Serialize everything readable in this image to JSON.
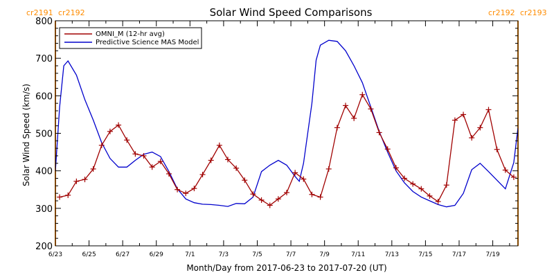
{
  "colors": {
    "omni": "#a00000",
    "mas": "#0000cc",
    "carrington": "#ff8c00",
    "axis": "#000000"
  },
  "carrington_labels": {
    "left": [
      "cr2191",
      "cr2192"
    ],
    "right": [
      "cr2192",
      "cr2193"
    ]
  },
  "chart_data": {
    "type": "line",
    "title": "Solar Wind Speed Comparisons",
    "xlabel": "Month/Day from 2017-06-23 to 2017-07-20 (UT)",
    "ylabel": "Solar Wind Speed (km/s)",
    "ylim": [
      200,
      800
    ],
    "xlim": [
      "2017-06-23 00:00",
      "2017-07-20 12:00"
    ],
    "x_ticks": [
      "6/23",
      "6/25",
      "6/27",
      "6/29",
      "7/1",
      "7/3",
      "7/5",
      "7/7",
      "7/9",
      "7/11",
      "7/13",
      "7/15",
      "7/17",
      "7/19"
    ],
    "y_ticks": [
      "200",
      "300",
      "400",
      "500",
      "600",
      "700",
      "800"
    ],
    "legend_position": "top-left",
    "carrington_boundaries": [
      "2017-06-23 00:00",
      "2017-07-20 12:00"
    ],
    "series": [
      {
        "name": "OMNI_M (12-hr avg)",
        "style": "line-with-plus-markers",
        "points": [
          [
            "2017-06-23 06:00",
            330
          ],
          [
            "2017-06-23 18:00",
            335
          ],
          [
            "2017-06-24 06:00",
            372
          ],
          [
            "2017-06-24 18:00",
            377
          ],
          [
            "2017-06-25 06:00",
            405
          ],
          [
            "2017-06-25 18:00",
            468
          ],
          [
            "2017-06-26 06:00",
            505
          ],
          [
            "2017-06-26 18:00",
            522
          ],
          [
            "2017-06-27 06:00",
            482
          ],
          [
            "2017-06-27 18:00",
            445
          ],
          [
            "2017-06-28 06:00",
            440
          ],
          [
            "2017-06-28 18:00",
            410
          ],
          [
            "2017-06-29 06:00",
            425
          ],
          [
            "2017-06-29 18:00",
            392
          ],
          [
            "2017-06-30 06:00",
            350
          ],
          [
            "2017-06-30 18:00",
            340
          ],
          [
            "2017-07-01 06:00",
            353
          ],
          [
            "2017-07-01 18:00",
            390
          ],
          [
            "2017-07-02 06:00",
            428
          ],
          [
            "2017-07-02 18:00",
            468
          ],
          [
            "2017-07-03 06:00",
            430
          ],
          [
            "2017-07-03 18:00",
            407
          ],
          [
            "2017-07-04 06:00",
            375
          ],
          [
            "2017-07-04 18:00",
            338
          ],
          [
            "2017-07-05 06:00",
            322
          ],
          [
            "2017-07-05 18:00",
            308
          ],
          [
            "2017-07-06 06:00",
            325
          ],
          [
            "2017-07-06 18:00",
            342
          ],
          [
            "2017-07-07 06:00",
            395
          ],
          [
            "2017-07-07 18:00",
            378
          ],
          [
            "2017-07-08 06:00",
            337
          ],
          [
            "2017-07-08 18:00",
            330
          ],
          [
            "2017-07-09 06:00",
            405
          ],
          [
            "2017-07-09 18:00",
            515
          ],
          [
            "2017-07-10 06:00",
            574
          ],
          [
            "2017-07-10 18:00",
            540
          ],
          [
            "2017-07-11 06:00",
            603
          ],
          [
            "2017-07-11 18:00",
            565
          ],
          [
            "2017-07-12 06:00",
            502
          ],
          [
            "2017-07-12 18:00",
            458
          ],
          [
            "2017-07-13 06:00",
            408
          ],
          [
            "2017-07-13 18:00",
            380
          ],
          [
            "2017-07-14 06:00",
            365
          ],
          [
            "2017-07-14 18:00",
            352
          ],
          [
            "2017-07-15 06:00",
            333
          ],
          [
            "2017-07-15 18:00",
            318
          ],
          [
            "2017-07-16 06:00",
            362
          ],
          [
            "2017-07-16 18:00",
            535
          ],
          [
            "2017-07-17 06:00",
            550
          ],
          [
            "2017-07-17 18:00",
            488
          ],
          [
            "2017-07-18 06:00",
            515
          ],
          [
            "2017-07-18 18:00",
            563
          ],
          [
            "2017-07-19 06:00",
            457
          ],
          [
            "2017-07-19 18:00",
            402
          ],
          [
            "2017-07-20 06:00",
            383
          ]
        ]
      },
      {
        "name": "Predictive Science MAS Model",
        "style": "line",
        "points": [
          [
            "2017-06-23 00:00",
            400
          ],
          [
            "2017-06-23 06:00",
            570
          ],
          [
            "2017-06-23 12:00",
            680
          ],
          [
            "2017-06-23 18:00",
            693
          ],
          [
            "2017-06-24 06:00",
            655
          ],
          [
            "2017-06-24 18:00",
            590
          ],
          [
            "2017-06-25 06:00",
            535
          ],
          [
            "2017-06-25 18:00",
            475
          ],
          [
            "2017-06-26 06:00",
            433
          ],
          [
            "2017-06-26 18:00",
            410
          ],
          [
            "2017-06-27 06:00",
            410
          ],
          [
            "2017-06-27 18:00",
            428
          ],
          [
            "2017-06-28 06:00",
            444
          ],
          [
            "2017-06-28 18:00",
            450
          ],
          [
            "2017-06-29 06:00",
            438
          ],
          [
            "2017-06-29 18:00",
            398
          ],
          [
            "2017-06-30 06:00",
            352
          ],
          [
            "2017-06-30 18:00",
            325
          ],
          [
            "2017-07-01 06:00",
            315
          ],
          [
            "2017-07-01 18:00",
            311
          ],
          [
            "2017-07-02 06:00",
            310
          ],
          [
            "2017-07-02 18:00",
            308
          ],
          [
            "2017-07-03 06:00",
            305
          ],
          [
            "2017-07-03 18:00",
            313
          ],
          [
            "2017-07-04 06:00",
            312
          ],
          [
            "2017-07-04 18:00",
            330
          ],
          [
            "2017-07-05 06:00",
            398
          ],
          [
            "2017-07-05 18:00",
            415
          ],
          [
            "2017-07-06 06:00",
            428
          ],
          [
            "2017-07-06 18:00",
            415
          ],
          [
            "2017-07-07 06:00",
            385
          ],
          [
            "2017-07-07 12:00",
            372
          ],
          [
            "2017-07-07 18:00",
            420
          ],
          [
            "2017-07-08 06:00",
            580
          ],
          [
            "2017-07-08 12:00",
            695
          ],
          [
            "2017-07-08 18:00",
            735
          ],
          [
            "2017-07-09 06:00",
            748
          ],
          [
            "2017-07-09 18:00",
            745
          ],
          [
            "2017-07-10 06:00",
            720
          ],
          [
            "2017-07-10 18:00",
            680
          ],
          [
            "2017-07-11 06:00",
            635
          ],
          [
            "2017-07-11 18:00",
            570
          ],
          [
            "2017-07-12 06:00",
            505
          ],
          [
            "2017-07-12 18:00",
            450
          ],
          [
            "2017-07-13 06:00",
            400
          ],
          [
            "2017-07-13 18:00",
            368
          ],
          [
            "2017-07-14 06:00",
            345
          ],
          [
            "2017-07-14 18:00",
            330
          ],
          [
            "2017-07-15 06:00",
            320
          ],
          [
            "2017-07-15 18:00",
            310
          ],
          [
            "2017-07-16 06:00",
            304
          ],
          [
            "2017-07-16 18:00",
            308
          ],
          [
            "2017-07-17 06:00",
            340
          ],
          [
            "2017-07-17 18:00",
            403
          ],
          [
            "2017-07-18 06:00",
            420
          ],
          [
            "2017-07-18 18:00",
            398
          ],
          [
            "2017-07-19 06:00",
            375
          ],
          [
            "2017-07-19 18:00",
            352
          ],
          [
            "2017-07-20 06:00",
            422
          ],
          [
            "2017-07-20 12:00",
            515
          ]
        ]
      }
    ]
  }
}
